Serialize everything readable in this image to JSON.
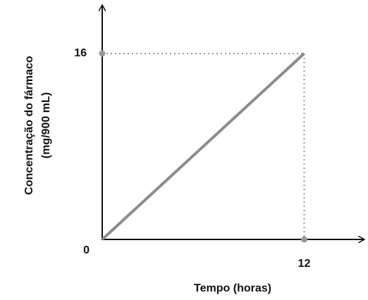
{
  "chart_data": {
    "type": "line",
    "x_label": "Tempo (horas)",
    "y_label": [
      "Concentração do fármaco",
      "(mg/900 mL)"
    ],
    "x": [
      0,
      12
    ],
    "values": [
      0,
      16
    ],
    "color": "#8c8c8c",
    "xlim": [
      0,
      15.5
    ],
    "ylim": [
      0,
      20
    ],
    "xticks": [
      12
    ],
    "yticks": [
      0,
      16
    ],
    "guide_color": "#999999"
  }
}
